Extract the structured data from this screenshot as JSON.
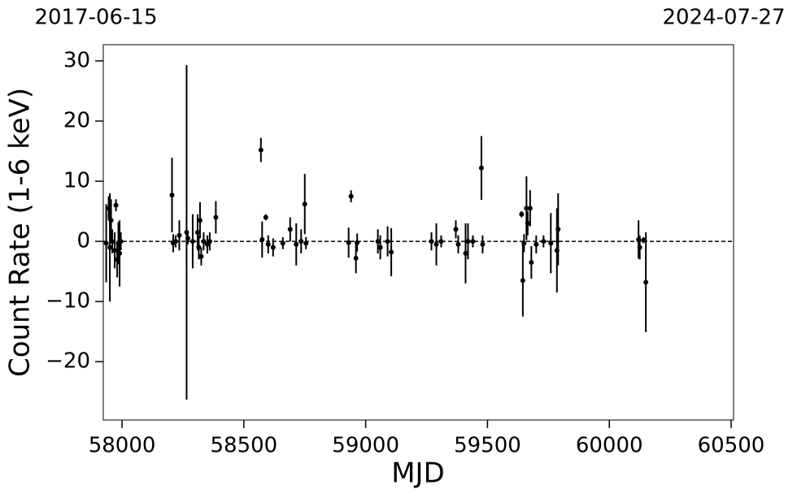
{
  "chart_data": {
    "type": "errorbar",
    "top_labels": [
      "2017-06-15",
      "2024-07-27"
    ],
    "x_label": "MJD",
    "y_label": "Count Rate (1-6 keV)",
    "color": "#000000",
    "hline": 0,
    "xlim": [
      57923,
      60510
    ],
    "ylim": [
      -29.7,
      32.7
    ],
    "xticks": [
      58000,
      58500,
      59000,
      59500,
      60000,
      60500
    ],
    "yticks": [
      {
        "value": -20,
        "label": "−20"
      },
      {
        "value": -10,
        "label": "−10"
      },
      0,
      10,
      20,
      30
    ],
    "x": [
      57935,
      57945,
      57950,
      57955,
      57960,
      57970,
      57975,
      57980,
      57985,
      57990,
      57995,
      58205,
      58210,
      58220,
      58235,
      58265,
      58270,
      58290,
      58310,
      58315,
      58320,
      58325,
      58335,
      58350,
      58360,
      58385,
      58570,
      58575,
      58590,
      58600,
      58620,
      58660,
      58690,
      58715,
      58735,
      58750,
      58755,
      58930,
      58940,
      58960,
      58965,
      59050,
      59060,
      59090,
      59105,
      59270,
      59290,
      59310,
      59370,
      59380,
      59410,
      59420,
      59440,
      59475,
      59480,
      59640,
      59645,
      59650,
      59660,
      59665,
      59675,
      59680,
      59700,
      59730,
      59760,
      59785,
      59790,
      60120,
      60125,
      60140,
      60150
    ],
    "values": [
      -0.3,
      5.5,
      -1,
      3.5,
      0,
      -1.5,
      6,
      -3,
      -0.3,
      -2,
      0,
      7.7,
      -0.3,
      0,
      1,
      1.5,
      0.5,
      0,
      1.5,
      -1,
      3.5,
      -2.5,
      0,
      -0.5,
      0,
      4,
      15.2,
      0.3,
      4,
      -0.5,
      -1,
      -0.3,
      2,
      -0.5,
      0,
      6.2,
      -0.3,
      -0.2,
      7.5,
      -2.8,
      -0.2,
      0,
      -1,
      0,
      -1.8,
      0,
      -0.5,
      0,
      2,
      -0.5,
      -2,
      0,
      0,
      12.2,
      -0.5,
      4.5,
      -6.5,
      -0.3,
      5.5,
      3,
      5.5,
      -3.5,
      -0.5,
      0,
      -0.3,
      -1.5,
      2,
      0.3,
      -1,
      0.2,
      -6.8
    ],
    "errors": [
      6.5,
      2,
      9,
      3.5,
      2,
      3,
      1,
      3,
      3.5,
      5.5,
      1.5,
      6.2,
      1.5,
      1,
      2.5,
      27.8,
      1,
      4.5,
      3,
      2,
      3,
      1.5,
      1.5,
      1.5,
      1.5,
      2.7,
      2,
      3,
      0.5,
      1.5,
      1.5,
      1,
      2,
      3.5,
      2,
      5,
      1,
      2.5,
      1,
      2.5,
      1.5,
      2,
      2,
      2.5,
      4,
      1.5,
      3.5,
      1,
      1.5,
      1.5,
      5,
      3,
      1,
      5.3,
      1.5,
      0.5,
      6,
      1.5,
      5.3,
      2,
      3,
      2.7,
      1.5,
      1,
      5,
      7,
      6,
      3.2,
      2,
      0.5,
      8.3
    ]
  }
}
